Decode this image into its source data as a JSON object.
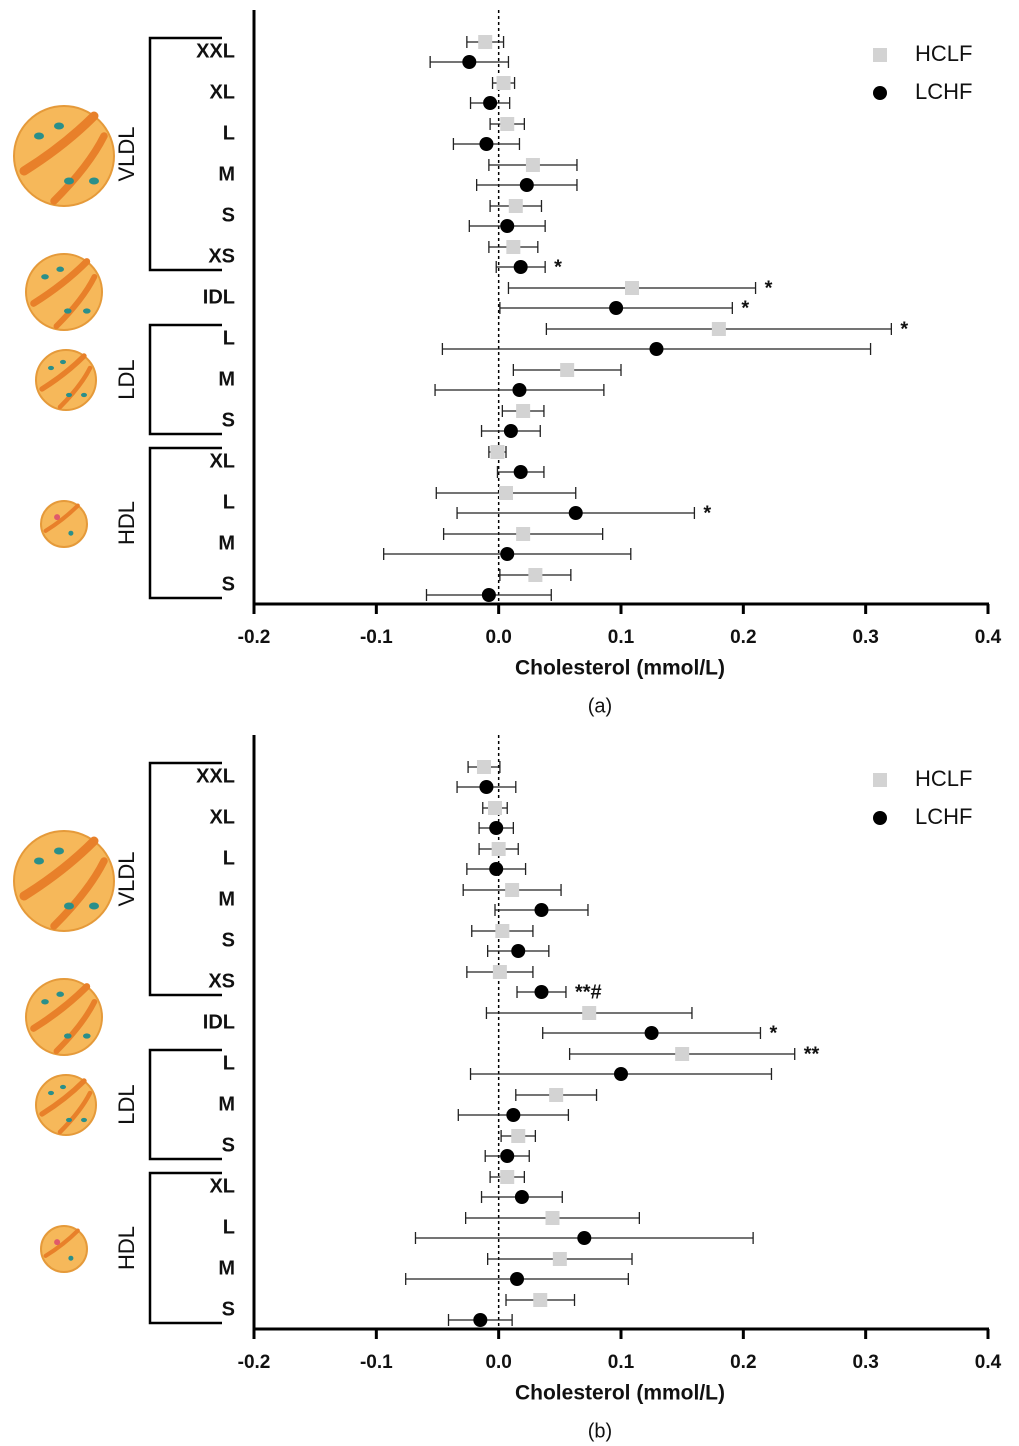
{
  "chart_data": [
    {
      "type": "forest",
      "panel_label": "(a)",
      "x_label": "Cholesterol (mmol/L)",
      "groups": [
        {
          "name": "VLDL",
          "categories": [
            "XXL",
            "XL",
            "L",
            "M",
            "S",
            "XS"
          ]
        },
        {
          "categories": [
            "IDL"
          ]
        },
        {
          "name": "LDL",
          "categories": [
            "L",
            "M",
            "S"
          ]
        },
        {
          "name": "HDL",
          "categories": [
            "XL",
            "L",
            "M",
            "S"
          ]
        }
      ],
      "series": [
        {
          "name": "HCLF",
          "color": "#d3d3d3",
          "marker": "square",
          "values": [
            -0.011,
            0.004,
            0.007,
            0.028,
            0.014,
            0.012,
            0.109,
            0.18,
            0.056,
            0.02,
            -0.001,
            0.006,
            0.02,
            0.03
          ],
          "errors": [
            0.015,
            0.009,
            0.014,
            0.036,
            0.021,
            0.02,
            0.101,
            0.141,
            0.044,
            0.017,
            0.007,
            0.057,
            0.065,
            0.029
          ],
          "significance": [
            null,
            null,
            null,
            null,
            null,
            null,
            "*",
            "*",
            null,
            null,
            null,
            null,
            null,
            null
          ]
        },
        {
          "name": "LCHF",
          "color": "#000000",
          "marker": "circle",
          "values": [
            -0.024,
            -0.007,
            -0.01,
            0.023,
            0.007,
            0.018,
            0.096,
            0.129,
            0.017,
            0.01,
            0.018,
            0.063,
            0.007,
            -0.008
          ],
          "errors": [
            0.032,
            0.016,
            0.027,
            0.041,
            0.031,
            0.02,
            0.095,
            0.175,
            0.069,
            0.024,
            0.019,
            0.097,
            0.101,
            0.051
          ],
          "significance": [
            null,
            null,
            null,
            null,
            null,
            "*",
            "*",
            null,
            null,
            null,
            null,
            "*",
            null,
            null
          ]
        }
      ],
      "xlim": [
        -0.2,
        0.4
      ],
      "xticks": [
        -0.2,
        -0.1,
        {
          "value": 0,
          "label": "0.0"
        },
        0.1,
        0.2,
        0.3,
        0.4
      ],
      "legend": "top-right"
    },
    {
      "type": "forest",
      "panel_label": "(b)",
      "x_label": "Cholesterol (mmol/L)",
      "groups": [
        {
          "name": "VLDL",
          "categories": [
            "XXL",
            "XL",
            "L",
            "M",
            "S",
            "XS"
          ]
        },
        {
          "categories": [
            "IDL"
          ]
        },
        {
          "name": "LDL",
          "categories": [
            "L",
            "M",
            "S"
          ]
        },
        {
          "name": "HDL",
          "categories": [
            "XL",
            "L",
            "M",
            "S"
          ]
        }
      ],
      "series": [
        {
          "name": "HCLF",
          "color": "#d3d3d3",
          "marker": "square",
          "values": [
            -0.012,
            -0.003,
            0,
            0.011,
            0.003,
            0.001,
            0.074,
            0.15,
            0.047,
            0.016,
            0.007,
            0.044,
            0.05,
            0.034
          ],
          "errors": [
            0.013,
            0.01,
            0.016,
            0.04,
            0.025,
            0.027,
            0.084,
            0.092,
            0.033,
            0.014,
            0.014,
            0.071,
            0.059,
            0.028
          ],
          "significance": [
            null,
            null,
            null,
            null,
            null,
            null,
            null,
            "**",
            null,
            null,
            null,
            null,
            null,
            null
          ]
        },
        {
          "name": "LCHF",
          "color": "#000000",
          "marker": "circle",
          "values": [
            -0.01,
            -0.002,
            -0.002,
            0.035,
            0.016,
            0.035,
            0.125,
            0.1,
            0.012,
            0.007,
            0.019,
            0.07,
            0.015,
            -0.015
          ],
          "errors": [
            0.024,
            0.014,
            0.024,
            0.038,
            0.025,
            0.02,
            0.089,
            0.123,
            0.045,
            0.018,
            0.033,
            0.138,
            0.091,
            0.026
          ],
          "significance": [
            null,
            null,
            null,
            null,
            null,
            "**#",
            "*",
            null,
            null,
            null,
            null,
            null,
            null,
            null
          ]
        }
      ],
      "xlim": [
        -0.2,
        0.4
      ],
      "xticks": [
        -0.2,
        -0.1,
        {
          "value": 0,
          "label": "0.0"
        },
        0.1,
        0.2,
        0.3,
        0.4
      ],
      "legend": "top-right"
    }
  ]
}
